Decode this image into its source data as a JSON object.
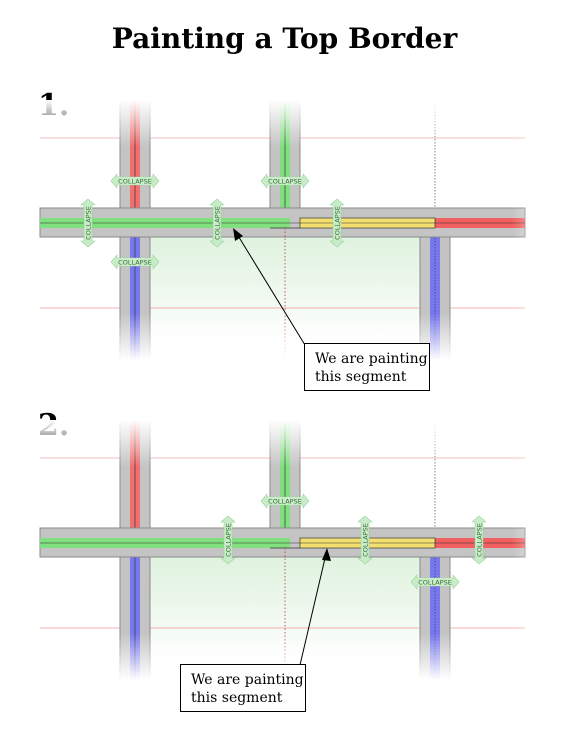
{
  "title": "Painting a Top Border",
  "steps": [
    {
      "number": "1.",
      "callout": [
        "We are painting",
        "this segment"
      ],
      "collapse_labels": [
        "COLLAPSE",
        "COLLAPSE",
        "COLLAPSE",
        "COLLAPSE",
        "COLLAPSE",
        "COLLAPSE"
      ]
    },
    {
      "number": "2.",
      "callout": [
        "We are painting",
        "this segment"
      ],
      "collapse_labels": [
        "COLLAPSE",
        "COLLAPSE",
        "COLLAPSE",
        "COLLAPSE",
        "COLLAPSE"
      ]
    }
  ],
  "colors": {
    "border_gray": "#b8b8b8",
    "red": "#f06060",
    "green": "#80e080",
    "blue": "#7070ee",
    "yellow": "#f4e070",
    "arrow_fill": "#c8ecc8",
    "cell_fill": "#e6f5e6"
  }
}
